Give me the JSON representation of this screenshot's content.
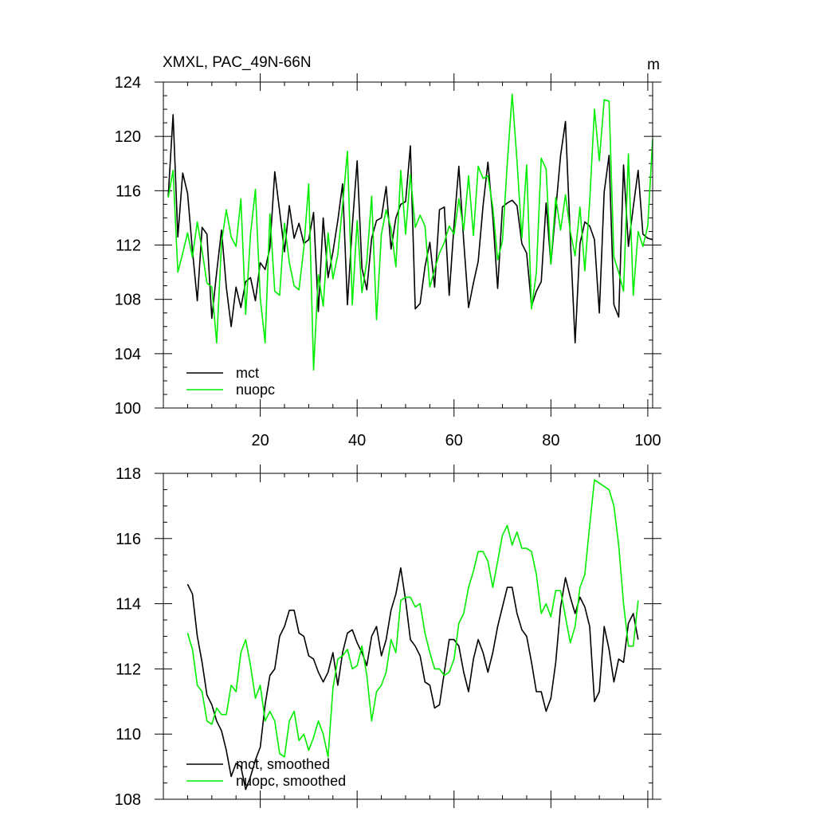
{
  "chart_data": [
    {
      "type": "line",
      "title": "XMXL, PAC_49N-66N",
      "units": "m",
      "xlim": [
        0,
        101
      ],
      "ylim": [
        100,
        124
      ],
      "x_ticks": [
        20,
        40,
        60,
        80,
        100
      ],
      "y_ticks": [
        100,
        104,
        108,
        112,
        116,
        120,
        124
      ],
      "legend_position": "bottom-left",
      "series": [
        {
          "name": "mct",
          "color": "#000000",
          "x": [
            1,
            2,
            3,
            4,
            5,
            6,
            7,
            8,
            9,
            10,
            11,
            12,
            13,
            14,
            15,
            16,
            17,
            18,
            19,
            20,
            21,
            22,
            23,
            24,
            25,
            26,
            27,
            28,
            29,
            30,
            31,
            32,
            33,
            34,
            35,
            36,
            37,
            38,
            39,
            40,
            41,
            42,
            43,
            44,
            45,
            46,
            47,
            48,
            49,
            50,
            51,
            52,
            53,
            54,
            55,
            56,
            57,
            58,
            59,
            60,
            61,
            62,
            63,
            64,
            65,
            66,
            67,
            68,
            69,
            70,
            71,
            72,
            73,
            74,
            75,
            76,
            77,
            78,
            79,
            80,
            81,
            82,
            83,
            84,
            85,
            86,
            87,
            88,
            89,
            90,
            91,
            92,
            93,
            94,
            95,
            96,
            97,
            98,
            99,
            100,
            101
          ],
          "values": [
            115.6,
            121.6,
            112.6,
            117.3,
            115.8,
            111.6,
            107.9,
            113.3,
            112.8,
            106.6,
            110.0,
            113.1,
            108.9,
            106.0,
            108.9,
            107.4,
            109.3,
            109.6,
            107.9,
            110.7,
            110.2,
            111.8,
            117.4,
            114.5,
            111.5,
            114.9,
            112.5,
            113.6,
            112.1,
            112.4,
            114.4,
            107.1,
            114.0,
            109.6,
            111.5,
            113.8,
            116.5,
            107.6,
            113.4,
            118.2,
            110.3,
            108.7,
            112.5,
            113.8,
            114.0,
            116.3,
            111.7,
            114.0,
            115.0,
            115.2,
            119.3,
            107.3,
            107.7,
            110.4,
            112.2,
            108.9,
            114.6,
            114.8,
            108.3,
            113.5,
            117.8,
            112.3,
            107.4,
            109.2,
            110.8,
            114.9,
            118.1,
            114.1,
            108.8,
            114.8,
            115.1,
            115.3,
            114.9,
            112.1,
            111.4,
            107.5,
            108.6,
            109.3,
            115.1,
            110.6,
            114.6,
            118.6,
            121.1,
            112.5,
            104.8,
            112.1,
            113.7,
            113.4,
            112.4,
            107.0,
            115.9,
            118.6,
            107.6,
            106.7,
            117.9,
            111.9,
            114.8,
            117.5,
            112.8,
            112.5,
            112.4
          ]
        },
        {
          "name": "nuopc",
          "color": "#00ee00",
          "x": [
            1,
            2,
            3,
            4,
            5,
            6,
            7,
            8,
            9,
            10,
            11,
            12,
            13,
            14,
            15,
            16,
            17,
            18,
            19,
            20,
            21,
            22,
            23,
            24,
            25,
            26,
            27,
            28,
            29,
            30,
            31,
            32,
            33,
            34,
            35,
            36,
            37,
            38,
            39,
            40,
            41,
            42,
            43,
            44,
            45,
            46,
            47,
            48,
            49,
            50,
            51,
            52,
            53,
            54,
            55,
            56,
            57,
            58,
            59,
            60,
            61,
            62,
            63,
            64,
            65,
            66,
            67,
            68,
            69,
            70,
            71,
            72,
            73,
            74,
            75,
            76,
            77,
            78,
            79,
            80,
            81,
            82,
            83,
            84,
            85,
            86,
            87,
            88,
            89,
            90,
            91,
            92,
            93,
            94,
            95,
            96,
            97,
            98,
            99,
            100,
            101
          ],
          "values": [
            115.5,
            117.5,
            110.0,
            111.4,
            112.9,
            111.1,
            113.7,
            111.6,
            109.2,
            108.9,
            104.8,
            112.2,
            114.6,
            112.6,
            111.9,
            115.4,
            106.9,
            112.8,
            116.1,
            108.1,
            104.8,
            114.3,
            108.6,
            108.3,
            113.6,
            110.7,
            109.0,
            108.7,
            111.8,
            116.5,
            102.8,
            109.8,
            107.5,
            112.9,
            109.5,
            111.3,
            114.9,
            118.9,
            107.6,
            113.8,
            108.5,
            110.8,
            115.6,
            106.5,
            112.8,
            114.6,
            113.2,
            110.4,
            117.5,
            112.8,
            117.2,
            113.3,
            114.2,
            113.4,
            108.9,
            110.2,
            111.4,
            112.2,
            113.4,
            112.8,
            115.4,
            113.1,
            117.1,
            112.7,
            117.8,
            116.9,
            117.1,
            114.8,
            110.9,
            112.3,
            118.0,
            123.1,
            118.2,
            112.5,
            117.9,
            107.3,
            110.0,
            118.4,
            117.6,
            110.6,
            115.5,
            113.1,
            115.7,
            113.0,
            111.2,
            114.8,
            110.1,
            115.2,
            122.0,
            118.2,
            122.7,
            122.6,
            111.1,
            110.0,
            108.6,
            118.7,
            108.3,
            113.0,
            111.9,
            113.4,
            119.8
          ]
        }
      ]
    },
    {
      "type": "line",
      "title": "",
      "xlim": [
        0,
        101
      ],
      "ylim": [
        108,
        118
      ],
      "x_ticks": [
        20,
        40,
        60,
        80,
        100
      ],
      "y_ticks": [
        108,
        110,
        112,
        114,
        116,
        118
      ],
      "legend_position": "bottom-left",
      "series": [
        {
          "name": "mct, smoothed",
          "color": "#000000",
          "x": [
            5,
            6,
            7,
            8,
            9,
            10,
            11,
            12,
            13,
            14,
            15,
            16,
            17,
            18,
            19,
            20,
            21,
            22,
            23,
            24,
            25,
            26,
            27,
            28,
            29,
            30,
            31,
            32,
            33,
            34,
            35,
            36,
            37,
            38,
            39,
            40,
            41,
            42,
            43,
            44,
            45,
            46,
            47,
            48,
            49,
            50,
            51,
            52,
            53,
            54,
            55,
            56,
            57,
            58,
            59,
            60,
            61,
            62,
            63,
            64,
            65,
            66,
            67,
            68,
            69,
            70,
            71,
            72,
            73,
            74,
            75,
            76,
            77,
            78,
            79,
            80,
            81,
            82,
            83,
            84,
            85,
            86,
            87,
            88,
            89,
            90,
            91,
            92,
            93,
            94,
            95,
            96,
            97,
            98
          ],
          "values": [
            114.6,
            114.3,
            113.0,
            112.2,
            111.2,
            110.9,
            110.4,
            110.1,
            109.5,
            108.7,
            109.1,
            109.0,
            108.3,
            108.7,
            109.2,
            109.6,
            110.9,
            111.8,
            112.0,
            113.0,
            113.3,
            113.8,
            113.8,
            113.1,
            113.0,
            112.4,
            112.3,
            111.9,
            111.6,
            111.9,
            112.5,
            111.5,
            112.5,
            113.1,
            113.2,
            112.8,
            112.5,
            112.1,
            113.0,
            113.3,
            112.4,
            112.9,
            113.8,
            114.3,
            115.1,
            114.1,
            112.9,
            112.7,
            112.4,
            111.6,
            111.5,
            110.8,
            110.9,
            111.9,
            112.9,
            112.9,
            112.7,
            111.9,
            111.3,
            112.3,
            112.9,
            112.5,
            111.9,
            112.5,
            113.3,
            113.9,
            114.5,
            114.5,
            113.7,
            113.2,
            113.0,
            112.2,
            111.3,
            111.3,
            110.7,
            111.1,
            112.2,
            113.9,
            114.8,
            114.2,
            113.7,
            114.2,
            113.9,
            113.3,
            111.0,
            111.3,
            113.3,
            112.6,
            111.6,
            112.3,
            112.2,
            113.4,
            113.7,
            112.9
          ]
        },
        {
          "name": "nuopc, smoothed",
          "color": "#00ee00",
          "x": [
            5,
            6,
            7,
            8,
            9,
            10,
            11,
            12,
            13,
            14,
            15,
            16,
            17,
            18,
            19,
            20,
            21,
            22,
            23,
            24,
            25,
            26,
            27,
            28,
            29,
            30,
            31,
            32,
            33,
            34,
            35,
            36,
            37,
            38,
            39,
            40,
            41,
            42,
            43,
            44,
            45,
            46,
            47,
            48,
            49,
            50,
            51,
            52,
            53,
            54,
            55,
            56,
            57,
            58,
            59,
            60,
            61,
            62,
            63,
            64,
            65,
            66,
            67,
            68,
            69,
            70,
            71,
            72,
            73,
            74,
            75,
            76,
            77,
            78,
            79,
            80,
            81,
            82,
            83,
            84,
            85,
            86,
            87,
            88,
            89,
            90,
            91,
            92,
            93,
            94,
            95,
            96,
            97,
            98
          ],
          "values": [
            113.1,
            112.6,
            111.5,
            111.3,
            110.4,
            110.3,
            110.8,
            110.6,
            110.6,
            111.5,
            111.3,
            112.5,
            112.9,
            112.1,
            111.1,
            111.5,
            110.4,
            110.7,
            110.4,
            109.4,
            109.3,
            110.4,
            110.7,
            109.8,
            110.0,
            109.5,
            109.9,
            110.4,
            110.0,
            109.3,
            111.4,
            112.3,
            112.4,
            112.6,
            112.0,
            112.1,
            112.7,
            111.8,
            110.4,
            111.3,
            111.5,
            111.9,
            112.9,
            112.5,
            114.1,
            114.2,
            114.2,
            113.9,
            114.0,
            113.1,
            112.5,
            112.0,
            112.0,
            111.8,
            111.9,
            112.3,
            113.4,
            113.7,
            114.5,
            115.0,
            115.6,
            115.6,
            115.3,
            114.5,
            115.3,
            116.1,
            116.4,
            115.8,
            116.2,
            115.7,
            115.7,
            115.6,
            114.9,
            113.7,
            114.0,
            113.6,
            114.4,
            114.4,
            113.6,
            112.8,
            113.3,
            114.5,
            114.9,
            116.4,
            117.8,
            117.7,
            117.6,
            117.5,
            117.0,
            115.8,
            114.0,
            112.7,
            112.7,
            114.1
          ]
        }
      ]
    }
  ]
}
